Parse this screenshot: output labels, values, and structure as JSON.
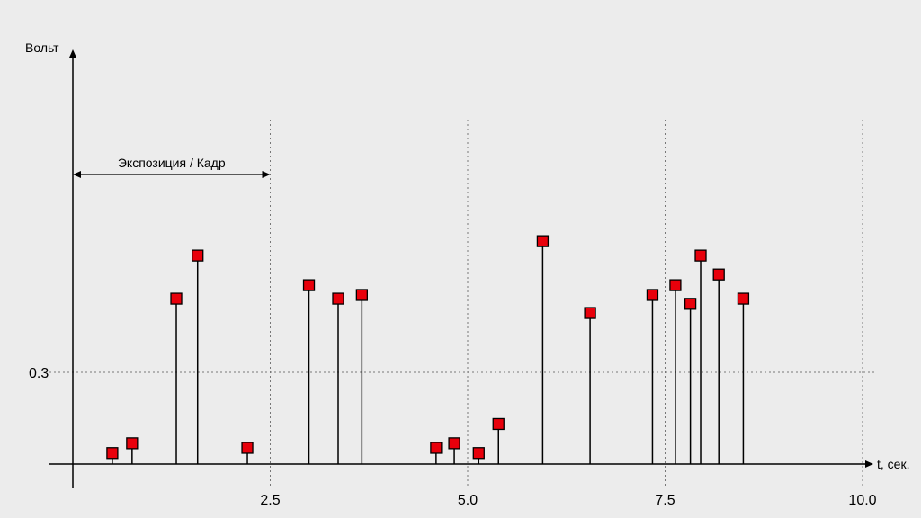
{
  "chart_data": {
    "type": "scatter",
    "style": "stem",
    "ylabel": "Вольт",
    "xlabel": "t, сек.",
    "xlim": [
      0,
      10.2
    ],
    "ylim": [
      0,
      1.1
    ],
    "x_ticks": [
      2.5,
      5.0,
      7.5,
      10.0
    ],
    "x_tick_labels": [
      "2.5",
      "5.0",
      "7.5",
      "10.0"
    ],
    "y_ticks": [
      0.3
    ],
    "y_tick_labels": [
      "0.3"
    ],
    "grid": "dashed at tick positions",
    "annotation": {
      "text": "Экспозиция / Кадр",
      "x_from": 0,
      "x_to": 2.5,
      "y": 0.95
    },
    "marker_color": "#e8000b",
    "points": [
      {
        "x": 0.5,
        "y": 0.036
      },
      {
        "x": 0.75,
        "y": 0.068
      },
      {
        "x": 1.31,
        "y": 0.541
      },
      {
        "x": 1.58,
        "y": 0.682
      },
      {
        "x": 2.21,
        "y": 0.053
      },
      {
        "x": 2.99,
        "y": 0.585
      },
      {
        "x": 3.36,
        "y": 0.541
      },
      {
        "x": 3.66,
        "y": 0.553
      },
      {
        "x": 4.6,
        "y": 0.053
      },
      {
        "x": 4.83,
        "y": 0.068
      },
      {
        "x": 5.14,
        "y": 0.036
      },
      {
        "x": 5.39,
        "y": 0.131
      },
      {
        "x": 5.95,
        "y": 0.729
      },
      {
        "x": 6.55,
        "y": 0.494
      },
      {
        "x": 7.34,
        "y": 0.553
      },
      {
        "x": 7.63,
        "y": 0.585
      },
      {
        "x": 7.82,
        "y": 0.524
      },
      {
        "x": 7.95,
        "y": 0.682
      },
      {
        "x": 8.18,
        "y": 0.62
      },
      {
        "x": 8.49,
        "y": 0.541
      }
    ]
  }
}
